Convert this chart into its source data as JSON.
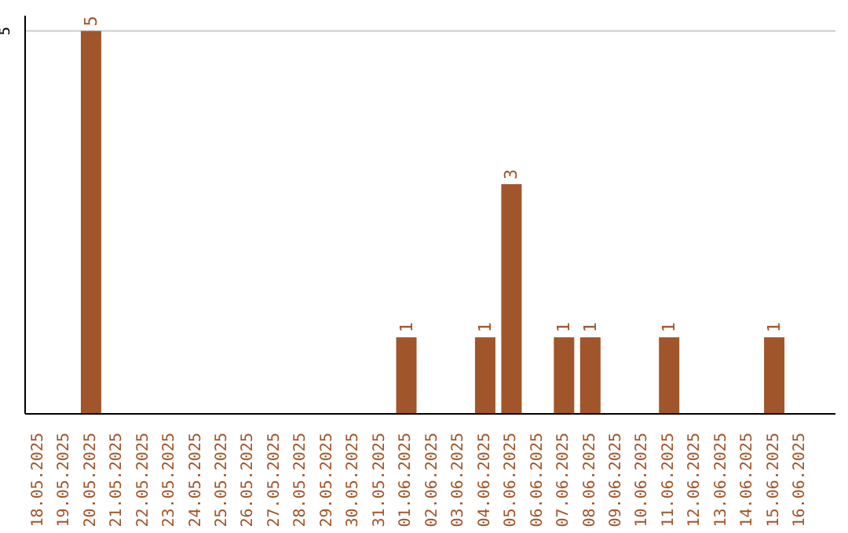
{
  "chart_data": {
    "type": "bar",
    "categories": [
      "18.05.2025",
      "19.05.2025",
      "20.05.2025",
      "21.05.2025",
      "22.05.2025",
      "23.05.2025",
      "24.05.2025",
      "25.05.2025",
      "26.05.2025",
      "27.05.2025",
      "28.05.2025",
      "29.05.2025",
      "30.05.2025",
      "31.05.2025",
      "01.06.2025",
      "02.06.2025",
      "03.06.2025",
      "04.06.2025",
      "05.06.2025",
      "06.06.2025",
      "07.06.2025",
      "08.06.2025",
      "09.06.2025",
      "10.06.2025",
      "11.06.2025",
      "12.06.2025",
      "13.06.2025",
      "14.06.2025",
      "15.06.2025",
      "16.06.2025"
    ],
    "values": [
      0,
      0,
      5,
      0,
      0,
      0,
      0,
      0,
      0,
      0,
      0,
      0,
      0,
      0,
      1,
      0,
      0,
      1,
      3,
      0,
      1,
      1,
      0,
      0,
      1,
      0,
      0,
      0,
      1,
      0
    ],
    "value_labels": [
      null,
      null,
      "5",
      null,
      null,
      null,
      null,
      null,
      null,
      null,
      null,
      null,
      null,
      null,
      "1",
      null,
      null,
      "1",
      "3",
      null,
      "1",
      "1",
      null,
      null,
      "1",
      null,
      null,
      null,
      "1",
      null
    ],
    "color": "#a0562a",
    "ylim": [
      0,
      5.2
    ],
    "yticks": [
      5
    ],
    "grid": "y"
  }
}
